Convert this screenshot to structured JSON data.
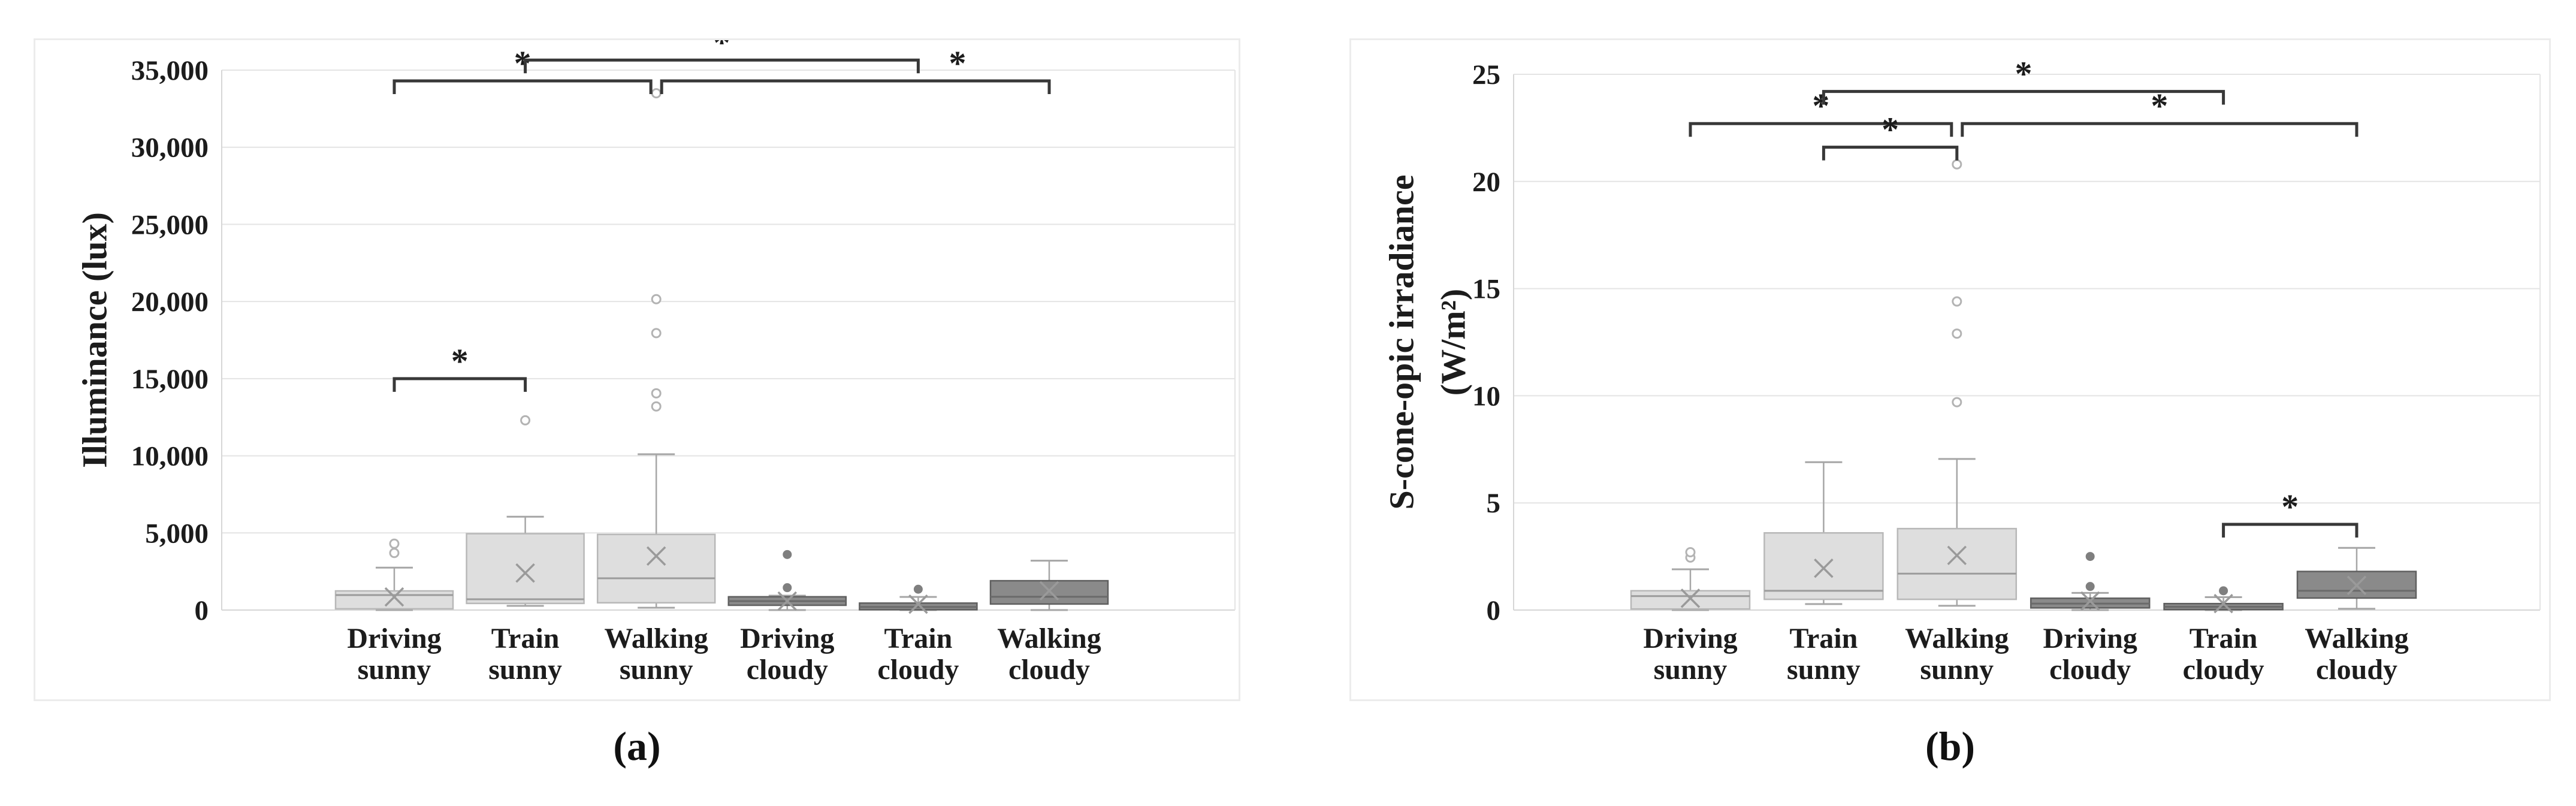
{
  "figure": {
    "background": "#ffffff",
    "description_visible_text_only": true
  },
  "colors": {
    "text": "#1c1c1c",
    "gridline": "#e4e4e4",
    "axis_line": "#d6d6d6",
    "box_light_fill": "#dedede",
    "box_light_stroke": "#b8b8b8",
    "box_dark_fill": "#8a8a8a",
    "box_dark_stroke": "#5f5f5f",
    "median_light": "#9b9b9b",
    "median_dark": "#6a6a6a",
    "whisker": "#a6a6a6",
    "mean_marker": "#9a9a9a",
    "outlier_light": "#b3b3b3",
    "outlier_dark": "#7f7f7f",
    "bracket": "#383838",
    "frame": "#ececec"
  },
  "chart_data": [
    {
      "type": "box",
      "panel": "a",
      "caption": "(a)",
      "title": "",
      "xlabel": "",
      "ylabel_lines": [
        "Illuminance (lux)"
      ],
      "ylim": [
        0,
        35000
      ],
      "grid": "horizontal",
      "y_ticks": [
        {
          "value": 0,
          "label": "0"
        },
        {
          "value": 5000,
          "label": "5,000"
        },
        {
          "value": 10000,
          "label": "10,000"
        },
        {
          "value": 15000,
          "label": "15,000"
        },
        {
          "value": 20000,
          "label": "20,000"
        },
        {
          "value": 25000,
          "label": "25,000"
        },
        {
          "value": 30000,
          "label": "30,000"
        },
        {
          "value": 35000,
          "label": "35,000"
        }
      ],
      "categories": [
        {
          "line1": "Driving",
          "line2": "sunny"
        },
        {
          "line1": "Train",
          "line2": "sunny"
        },
        {
          "line1": "Walking",
          "line2": "sunny"
        },
        {
          "line1": "Driving",
          "line2": "cloudy"
        },
        {
          "line1": "Train",
          "line2": "cloudy"
        },
        {
          "line1": "Walking",
          "line2": "cloudy"
        }
      ],
      "shading": [
        "light",
        "light",
        "light",
        "dark",
        "dark",
        "dark"
      ],
      "boxes": [
        {
          "category": "Driving sunny",
          "whisker_low": 0,
          "q1": 80,
          "median": 970,
          "q3": 1240,
          "whisker_high": 2750,
          "mean": 850,
          "outliers": [
            3700,
            4300
          ]
        },
        {
          "category": "Train sunny",
          "whisker_low": 270,
          "q1": 430,
          "median": 700,
          "q3": 4950,
          "whisker_high": 6050,
          "mean": 2400,
          "outliers": [
            12300
          ]
        },
        {
          "category": "Walking sunny",
          "whisker_low": 150,
          "q1": 470,
          "median": 2060,
          "q3": 4900,
          "whisker_high": 10100,
          "mean": 3500,
          "outliers": [
            13200,
            14050,
            17950,
            20150,
            33500
          ]
        },
        {
          "category": "Driving cloudy",
          "whisker_low": 0,
          "q1": 310,
          "median": 580,
          "q3": 860,
          "whisker_high": 930,
          "mean": 580,
          "outliers": [
            1450,
            3600
          ]
        },
        {
          "category": "Train cloudy",
          "whisker_low": 0,
          "q1": 20,
          "median": 200,
          "q3": 450,
          "whisker_high": 850,
          "mean": 380,
          "outliers": [
            1350
          ]
        },
        {
          "category": "Walking cloudy",
          "whisker_low": 0,
          "q1": 390,
          "median": 860,
          "q3": 1900,
          "whisker_high": 3200,
          "mean": 1250,
          "outliers": []
        }
      ],
      "significance_brackets": [
        {
          "group1": "Driving sunny",
          "group2": "Train sunny",
          "left": 0,
          "right": 1,
          "value": 15000,
          "label": "*"
        },
        {
          "group1": "Driving sunny",
          "group2": "Walking sunny",
          "left": 0,
          "right": 2,
          "value": 34300,
          "label": "*"
        },
        {
          "group1": "Train sunny",
          "group2": "Train cloudy",
          "left": 1,
          "right": 4,
          "value": 35650,
          "label": "*"
        },
        {
          "group1": "Walking sunny",
          "group2": "Walking cloudy",
          "left": 2,
          "right": 5,
          "value": 34300,
          "label": "*",
          "star_at": 4.3
        }
      ]
    },
    {
      "type": "box",
      "panel": "b",
      "caption": "(b)",
      "title": "",
      "xlabel": "",
      "ylabel_lines": [
        "S-cone-opic irradiance",
        "(W/m²)"
      ],
      "ylim": [
        0,
        25
      ],
      "grid": "horizontal",
      "y_ticks": [
        {
          "value": 0,
          "label": "0"
        },
        {
          "value": 5,
          "label": "5"
        },
        {
          "value": 10,
          "label": "10"
        },
        {
          "value": 15,
          "label": "15"
        },
        {
          "value": 20,
          "label": "20"
        },
        {
          "value": 25,
          "label": "25"
        }
      ],
      "categories": [
        {
          "line1": "Driving",
          "line2": "sunny"
        },
        {
          "line1": "Train",
          "line2": "sunny"
        },
        {
          "line1": "Walking",
          "line2": "sunny"
        },
        {
          "line1": "Driving",
          "line2": "cloudy"
        },
        {
          "line1": "Train",
          "line2": "cloudy"
        },
        {
          "line1": "Walking",
          "line2": "cloudy"
        }
      ],
      "shading": [
        "light",
        "light",
        "light",
        "dark",
        "dark",
        "dark"
      ],
      "boxes": [
        {
          "category": "Driving sunny",
          "whisker_low": 0,
          "q1": 0.05,
          "median": 0.65,
          "q3": 0.9,
          "whisker_high": 1.9,
          "mean": 0.55,
          "outliers": [
            2.45,
            2.7
          ]
        },
        {
          "category": "Train sunny",
          "whisker_low": 0.28,
          "q1": 0.5,
          "median": 0.9,
          "q3": 3.6,
          "whisker_high": 6.9,
          "mean": 1.95,
          "outliers": []
        },
        {
          "category": "Walking sunny",
          "whisker_low": 0.2,
          "q1": 0.5,
          "median": 1.7,
          "q3": 3.8,
          "whisker_high": 7.05,
          "mean": 2.55,
          "outliers": [
            9.7,
            12.9,
            14.4,
            20.8
          ]
        },
        {
          "category": "Driving cloudy",
          "whisker_low": 0,
          "q1": 0.1,
          "median": 0.3,
          "q3": 0.55,
          "whisker_high": 0.8,
          "mean": 0.42,
          "outliers": [
            1.1,
            2.5
          ]
        },
        {
          "category": "Train cloudy",
          "whisker_low": 0,
          "q1": 0.02,
          "median": 0.15,
          "q3": 0.3,
          "whisker_high": 0.6,
          "mean": 0.3,
          "outliers": [
            0.9
          ]
        },
        {
          "category": "Walking cloudy",
          "whisker_low": 0.06,
          "q1": 0.56,
          "median": 0.9,
          "q3": 1.8,
          "whisker_high": 2.9,
          "mean": 1.15,
          "outliers": []
        }
      ],
      "significance_brackets": [
        {
          "group1": "Driving sunny",
          "group2": "Walking sunny",
          "left": 0,
          "right": 2,
          "value": 22.7,
          "label": "*"
        },
        {
          "group1": "Train sunny",
          "group2": "Walking sunny",
          "left": 1,
          "right": 2,
          "value": 21.6,
          "label": "*"
        },
        {
          "group1": "Walking sunny",
          "group2": "Walking cloudy",
          "left": 2,
          "right": 5,
          "value": 22.7,
          "label": "*"
        },
        {
          "group1": "Train sunny",
          "group2": "Train cloudy",
          "left": 1,
          "right": 4,
          "value": 24.2,
          "label": "*"
        },
        {
          "group1": "Train cloudy",
          "group2": "Walking cloudy",
          "left": 4,
          "right": 5,
          "value": 4.0,
          "label": "*"
        }
      ]
    }
  ]
}
